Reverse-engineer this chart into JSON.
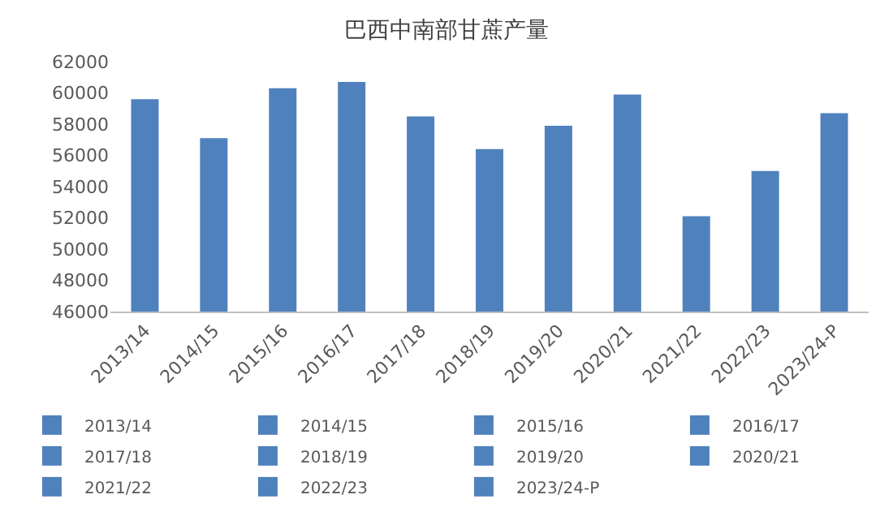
{
  "chart_data": {
    "type": "bar",
    "title": "巴西中南部甘蔗产量",
    "categories": [
      "2013/14",
      "2014/15",
      "2015/16",
      "2016/17",
      "2017/18",
      "2018/19",
      "2019/20",
      "2020/21",
      "2021/22",
      "2022/23",
      "2023/24-P"
    ],
    "series": [
      {
        "name": "2013/14",
        "color": "#4f81bd",
        "values": [
          59600,
          null,
          null,
          null,
          null,
          null,
          null,
          null,
          null,
          null,
          null
        ]
      },
      {
        "name": "2014/15",
        "color": "#4f81bd",
        "values": [
          null,
          57100,
          null,
          null,
          null,
          null,
          null,
          null,
          null,
          null,
          null
        ]
      },
      {
        "name": "2015/16",
        "color": "#4f81bd",
        "values": [
          null,
          null,
          60300,
          null,
          null,
          null,
          null,
          null,
          null,
          null,
          null
        ]
      },
      {
        "name": "2016/17",
        "color": "#4f81bd",
        "values": [
          null,
          null,
          null,
          60700,
          null,
          null,
          null,
          null,
          null,
          null,
          null
        ]
      },
      {
        "name": "2017/18",
        "color": "#4f81bd",
        "values": [
          null,
          null,
          null,
          null,
          58500,
          null,
          null,
          null,
          null,
          null,
          null
        ]
      },
      {
        "name": "2018/19",
        "color": "#4f81bd",
        "values": [
          null,
          null,
          null,
          null,
          null,
          56400,
          null,
          null,
          null,
          null,
          null
        ]
      },
      {
        "name": "2019/20",
        "color": "#4f81bd",
        "values": [
          null,
          null,
          null,
          null,
          null,
          null,
          57900,
          null,
          null,
          null,
          null
        ]
      },
      {
        "name": "2020/21",
        "color": "#4f81bd",
        "values": [
          null,
          null,
          null,
          null,
          null,
          null,
          null,
          59900,
          null,
          null,
          null
        ]
      },
      {
        "name": "2021/22",
        "color": "#4f81bd",
        "values": [
          null,
          null,
          null,
          null,
          null,
          null,
          null,
          null,
          52100,
          null,
          null
        ]
      },
      {
        "name": "2022/23",
        "color": "#4f81bd",
        "values": [
          null,
          null,
          null,
          null,
          null,
          null,
          null,
          null,
          null,
          55000,
          null
        ]
      },
      {
        "name": "2023/24-P",
        "color": "#4f81bd",
        "values": [
          null,
          null,
          null,
          null,
          null,
          null,
          null,
          null,
          null,
          null,
          58700
        ]
      }
    ],
    "ylim": [
      46000,
      62000
    ],
    "yticks": [
      46000,
      48000,
      50000,
      52000,
      54000,
      56000,
      58000,
      60000,
      62000
    ],
    "grid": false,
    "legend": "bottom"
  }
}
